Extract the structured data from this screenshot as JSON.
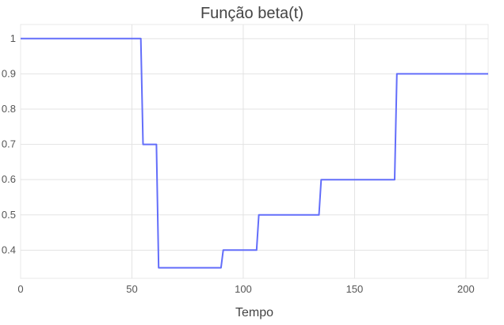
{
  "chart_data": {
    "type": "line",
    "title": "Função beta(t)",
    "xlabel": "Tempo",
    "ylabel": "",
    "xlim": [
      0,
      210
    ],
    "ylim": [
      0.32,
      1.04
    ],
    "xticks": [
      0,
      50,
      100,
      150,
      200
    ],
    "yticks": [
      0.4,
      0.5,
      0.6,
      0.7,
      0.8,
      0.9,
      1
    ],
    "ytick_labels": [
      "0.4",
      "0.5",
      "0.6",
      "0.7",
      "0.8",
      "0.9",
      "1"
    ],
    "xtick_labels": [
      "0",
      "50",
      "100",
      "150",
      "200"
    ],
    "grid": true,
    "series": [
      {
        "color": "#636efa",
        "x": [
          0,
          54,
          55,
          61,
          62,
          90,
          91,
          106,
          107,
          134,
          135,
          168,
          169,
          210
        ],
        "y": [
          1.0,
          1.0,
          0.7,
          0.7,
          0.35,
          0.35,
          0.4,
          0.4,
          0.5,
          0.5,
          0.6,
          0.6,
          0.9,
          0.9
        ]
      }
    ]
  }
}
